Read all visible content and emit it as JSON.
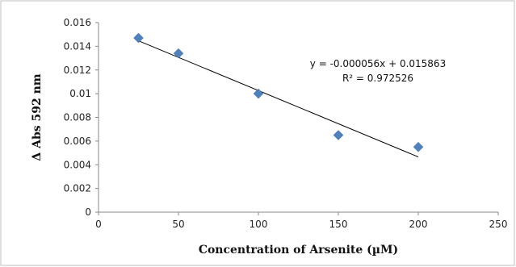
{
  "chart_data": {
    "type": "scatter",
    "title": "",
    "xlabel": "Concentration  of Arsenite (µM)",
    "ylabel": "Δ Abs 592 nm",
    "xlim": [
      0,
      250
    ],
    "ylim": [
      0,
      0.016
    ],
    "x_ticks": [
      "0",
      "50",
      "100",
      "150",
      "200",
      "250"
    ],
    "y_ticks": [
      "0",
      "0.002",
      "0.004",
      "0.006",
      "0.008",
      "0.01",
      "0.012",
      "0.014",
      "0.016"
    ],
    "grid": false,
    "legend": "none",
    "series": [
      {
        "x": [
          25,
          50,
          100,
          150,
          200
        ],
        "y": [
          0.0147,
          0.0134,
          0.01,
          0.0065,
          0.0055
        ],
        "marker": "diamond",
        "color": "#4f81bd"
      }
    ],
    "trendline": {
      "type": "linear",
      "slope": -5.6e-05,
      "intercept": 0.015863,
      "x_range": [
        25,
        200
      ],
      "color": "#000000"
    },
    "annotations": {
      "equation": "y = -0.000056x + 0.015863",
      "r_squared": "R² = 0.972526"
    }
  }
}
